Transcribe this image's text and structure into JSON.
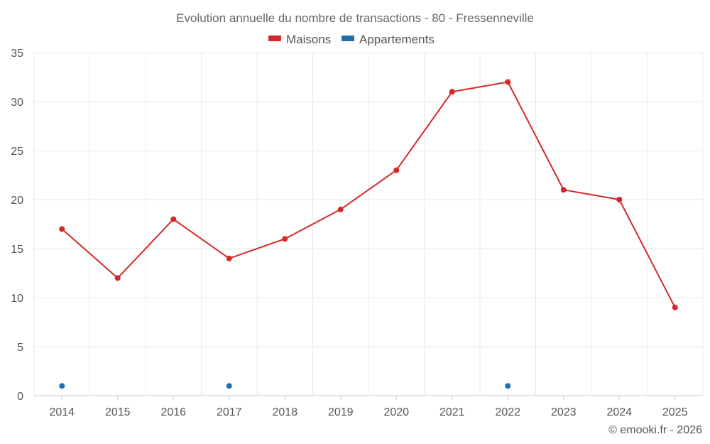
{
  "chart_data": {
    "type": "line",
    "title": "Evolution annuelle du nombre de transactions - 80 - Fressenneville",
    "xlabel": "",
    "ylabel": "",
    "categories": [
      "2014",
      "2015",
      "2016",
      "2017",
      "2018",
      "2019",
      "2020",
      "2021",
      "2022",
      "2023",
      "2024",
      "2025"
    ],
    "ylim": [
      0,
      35
    ],
    "yticks": [
      0,
      5,
      10,
      15,
      20,
      25,
      30,
      35
    ],
    "grid": true,
    "legend_position": "top-center",
    "series": [
      {
        "name": "Maisons",
        "color": "#d62728",
        "values": [
          17,
          12,
          18,
          14,
          16,
          19,
          23,
          31,
          32,
          21,
          20,
          9
        ]
      },
      {
        "name": "Appartements",
        "color": "#1f6fa8",
        "values": [
          1,
          null,
          null,
          1,
          null,
          null,
          null,
          null,
          1,
          null,
          null,
          null
        ]
      }
    ]
  },
  "credit": "© emooki.fr - 2026"
}
